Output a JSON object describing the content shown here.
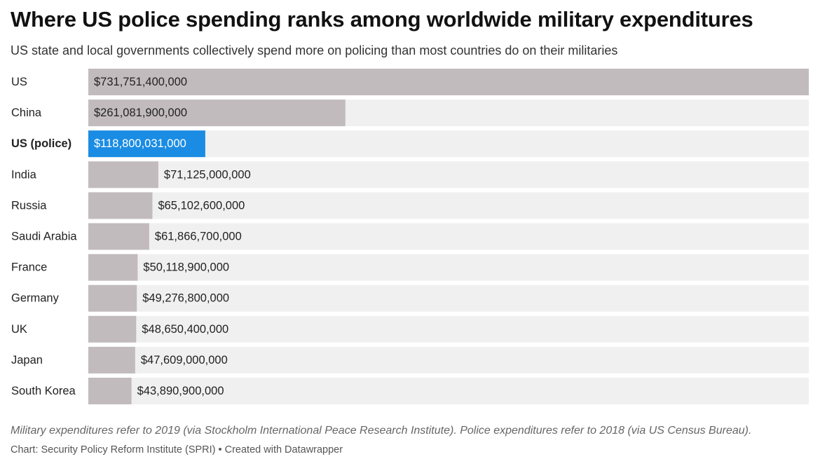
{
  "chart_data": {
    "type": "bar",
    "orientation": "horizontal",
    "title": "Where US police spending ranks among worldwide military expenditures",
    "subtitle": "US state and local governments collectively spend more on policing than most countries do on their militaries",
    "categories": [
      "US",
      "China",
      "US (police)",
      "India",
      "Russia",
      "Saudi Arabia",
      "France",
      "Germany",
      "UK",
      "Japan",
      "South Korea"
    ],
    "values": [
      731751400000,
      261081900000,
      118800031000,
      71125000000,
      65102600000,
      61866700000,
      50118900000,
      49276800000,
      48650400000,
      47609000000,
      43890900000
    ],
    "value_labels": [
      "$731,751,400,000",
      "$261,081,900,000",
      "$118,800,031,000",
      "$71,125,000,000",
      "$65,102,600,000",
      "$61,866,700,000",
      "$50,118,900,000",
      "$49,276,800,000",
      "$48,650,400,000",
      "$47,609,000,000",
      "$43,890,900,000"
    ],
    "highlight_category": "US (police)",
    "xlim": [
      0,
      731751400000
    ],
    "grid": false,
    "colors": {
      "bar": "#c2bbbe",
      "highlight": "#1a8ce3",
      "track": "#f0f0f0"
    }
  },
  "notes": "Military expenditures refer to 2019 (via Stockholm International Peace Research Institute). Police expenditures refer to 2018 (via US Census Bureau).",
  "credit": "Chart: Security Policy Reform Institute (SPRI) • Created with Datawrapper"
}
